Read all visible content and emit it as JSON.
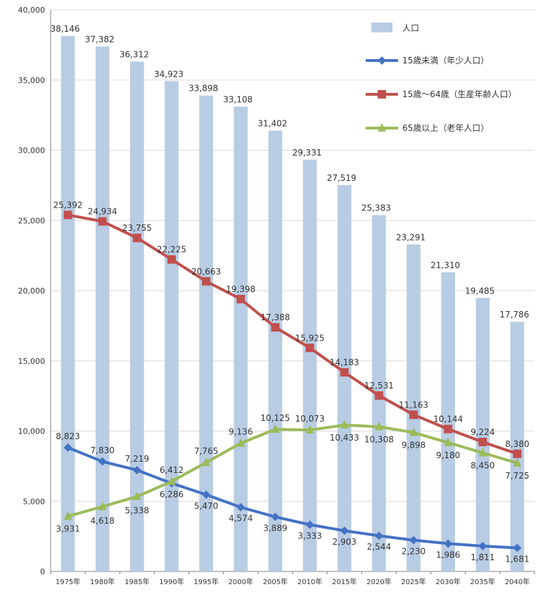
{
  "chart_data": {
    "type": "bar",
    "title": "",
    "xlabel": "",
    "ylabel": "",
    "ylim": [
      0,
      40000
    ],
    "yticks": [
      0,
      5000,
      10000,
      15000,
      20000,
      25000,
      30000,
      35000,
      40000
    ],
    "ytick_labels": [
      "0",
      "5,000",
      "10,000",
      "15,000",
      "20,000",
      "25,000",
      "30,000",
      "35,000",
      "40,000"
    ],
    "categories": [
      "1975年",
      "1980年",
      "1985年",
      "1990年",
      "1995年",
      "2000年",
      "2005年",
      "2010年",
      "2015年",
      "2020年",
      "2025年",
      "2030年",
      "2035年",
      "2040年"
    ],
    "grid": true,
    "legend_position": "top-right",
    "bar_series": {
      "name": "人口",
      "color": "#b8cce4",
      "values": [
        38146,
        37382,
        36312,
        34923,
        33898,
        33108,
        31402,
        29331,
        27519,
        25383,
        23291,
        21310,
        19485,
        17786
      ],
      "labels": [
        "38,146",
        "37,382",
        "36,312",
        "34,923",
        "33,898",
        "33,108",
        "31,402",
        "29,331",
        "27,519",
        "25,383",
        "23,291",
        "21,310",
        "19,485",
        "17,786"
      ]
    },
    "line_series": [
      {
        "name": "15歳未満（年少人口）",
        "color": "#4472c4",
        "marker": "diamond",
        "values": [
          8823,
          7830,
          7219,
          6286,
          5470,
          4574,
          3889,
          3333,
          2903,
          2544,
          2230,
          1986,
          1811,
          1681
        ],
        "labels": [
          "8,823",
          "7,830",
          "7,219",
          "6,286",
          "5,470",
          "4,574",
          "3,889",
          "3,333",
          "2,903",
          "2,544",
          "2,230",
          "1,986",
          "1,811",
          "1,681"
        ]
      },
      {
        "name": "15歳～64歳（生産年齢人口）",
        "color": "#c0504d",
        "marker": "square",
        "values": [
          25392,
          24934,
          23755,
          22225,
          20663,
          19398,
          17388,
          15925,
          14183,
          12531,
          11163,
          10144,
          9224,
          8380
        ],
        "labels": [
          "25,392",
          "24,934",
          "23,755",
          "22,225",
          "20,663",
          "19,398",
          "17,388",
          "15,925",
          "14,183",
          "12,531",
          "11,163",
          "10,144",
          "9,224",
          "8,380"
        ]
      },
      {
        "name": "65歳以上（老年人口）",
        "color": "#9bbb59",
        "marker": "triangle",
        "values": [
          3931,
          4618,
          5338,
          6412,
          7765,
          9136,
          10125,
          10073,
          10433,
          10308,
          9898,
          9180,
          8450,
          7725
        ],
        "labels": [
          "3,931",
          "4,618",
          "5,338",
          "6,412",
          "7,765",
          "9,136",
          "10,125",
          "10,073",
          "10,433",
          "10,308",
          "9,898",
          "9,180",
          "8,450",
          "7,725"
        ]
      }
    ]
  }
}
